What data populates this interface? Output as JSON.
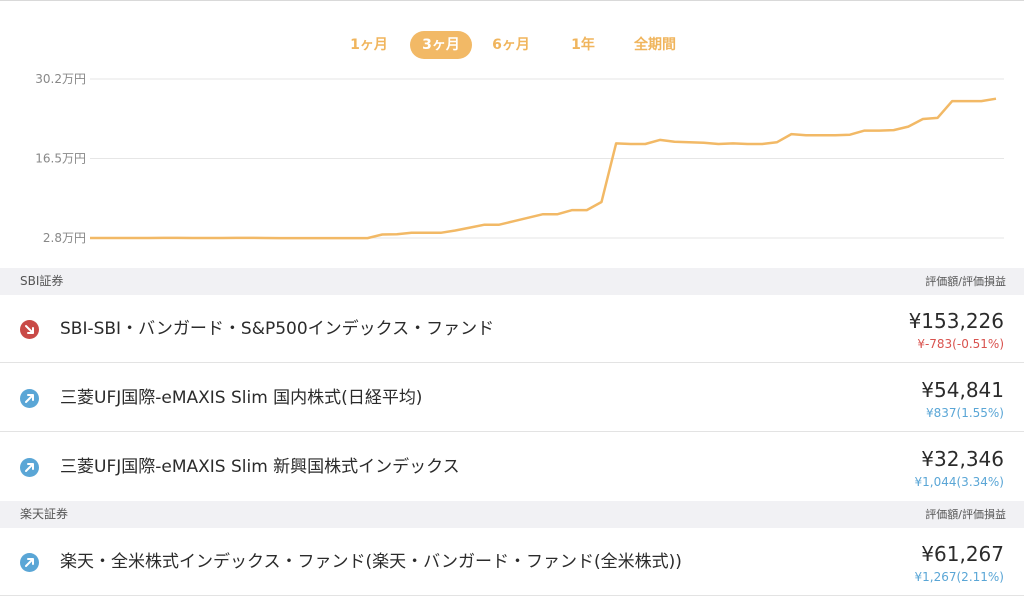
{
  "period_tabs": [
    {
      "label": "1ヶ月",
      "active": false
    },
    {
      "label": "3ヶ月",
      "active": true
    },
    {
      "label": "6ヶ月",
      "active": false
    },
    {
      "label": "1年",
      "active": false
    },
    {
      "label": "全期間",
      "active": false
    }
  ],
  "chart_data": {
    "type": "line",
    "y_tick_labels": [
      "30.2万円",
      "16.5万円",
      "2.8万円"
    ],
    "y_ticks": [
      302000,
      165000,
      28000
    ],
    "ylim": [
      28000,
      302000
    ],
    "grid": true,
    "color": "#f2b966",
    "series": [
      {
        "values": [
          28000,
          28000,
          28000,
          28000,
          28000,
          28100,
          28100,
          28000,
          28000,
          28000,
          28100,
          28100,
          28000,
          27900,
          27900,
          27800,
          27800,
          27800,
          27800,
          27800,
          34000,
          34500,
          37000,
          37000,
          37000,
          41000,
          46000,
          51000,
          51000,
          57000,
          63000,
          69000,
          69000,
          76000,
          76000,
          90000,
          191000,
          190000,
          190000,
          197000,
          194000,
          193000,
          192000,
          190000,
          191000,
          190000,
          190000,
          193000,
          207000,
          205000,
          205000,
          205000,
          206000,
          213000,
          213000,
          214000,
          220000,
          233000,
          235000,
          264000,
          264000,
          264000,
          268000
        ]
      }
    ]
  },
  "sections": [
    {
      "name": "SBI証券",
      "column_hint": "評価額/評価損益",
      "funds": [
        {
          "name": "SBI-SBI・バンガード・S&P500インデックス・ファンド",
          "amount": "¥153,226",
          "pl": "¥-783(-0.51%)",
          "trend": "down"
        },
        {
          "name": "三菱UFJ国際-eMAXIS Slim 国内株式(日経平均)",
          "amount": "¥54,841",
          "pl": "¥837(1.55%)",
          "trend": "up"
        },
        {
          "name": "三菱UFJ国際-eMAXIS Slim 新興国株式インデックス",
          "amount": "¥32,346",
          "pl": "¥1,044(3.34%)",
          "trend": "up"
        }
      ]
    },
    {
      "name": "楽天証券",
      "column_hint": "評価額/評価損益",
      "funds": [
        {
          "name": "楽天・全米株式インデックス・ファンド(楽天・バンガード・ファンド(全米株式))",
          "amount": "¥61,267",
          "pl": "¥1,267(2.11%)",
          "trend": "up"
        }
      ]
    }
  ],
  "colors": {
    "accent": "#f2b966",
    "loss": "#d9534f",
    "gain": "#5aa6d6",
    "down_badge": "#c94a47"
  },
  "icons": {
    "down": "arrow-down-right-icon",
    "up": "arrow-up-right-icon"
  }
}
